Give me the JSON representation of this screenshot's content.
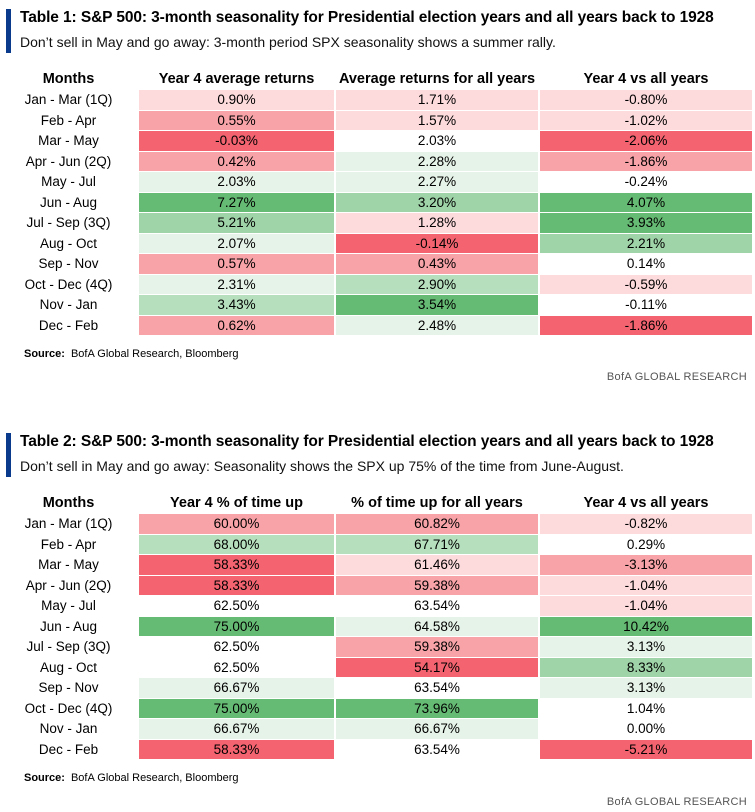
{
  "colors": {
    "accent_bar": "#0a3a8c",
    "scale": {
      "r3": "#f46470",
      "r2": "#f7a3a7",
      "r1": "#fddadc",
      "n": "#ffffff",
      "g1": "#e6f3e8",
      "g2": "#b6dfbd",
      "g3": "#9fd3a8",
      "g4": "#66bb74"
    }
  },
  "table1": {
    "title": "Table 1: S&P 500: 3-month seasonality for Presidential election years and all years back to 1928",
    "subtitle": "Don’t sell in May and go away: 3-month period SPX seasonality shows a summer rally.",
    "headers": [
      "Months",
      "Year 4 average returns",
      "Average returns for all years",
      "Year 4 vs all years"
    ],
    "rows": [
      {
        "month": "Jan - Mar (1Q)",
        "v1": "0.90%",
        "c1": "r1",
        "v2": "1.71%",
        "c2": "r1",
        "v3": "-0.80%",
        "c3": "r1"
      },
      {
        "month": "Feb - Apr",
        "v1": "0.55%",
        "c1": "r2",
        "v2": "1.57%",
        "c2": "r1",
        "v3": "-1.02%",
        "c3": "r1"
      },
      {
        "month": "Mar - May",
        "v1": "-0.03%",
        "c1": "r3",
        "v2": "2.03%",
        "c2": "n",
        "v3": "-2.06%",
        "c3": "r3"
      },
      {
        "month": "Apr - Jun (2Q)",
        "v1": "0.42%",
        "c1": "r2",
        "v2": "2.28%",
        "c2": "g1",
        "v3": "-1.86%",
        "c3": "r2"
      },
      {
        "month": "May - Jul",
        "v1": "2.03%",
        "c1": "g1",
        "v2": "2.27%",
        "c2": "g1",
        "v3": "-0.24%",
        "c3": "n"
      },
      {
        "month": "Jun - Aug",
        "v1": "7.27%",
        "c1": "g4",
        "v2": "3.20%",
        "c2": "g3",
        "v3": "4.07%",
        "c3": "g4"
      },
      {
        "month": "Jul - Sep (3Q)",
        "v1": "5.21%",
        "c1": "g3",
        "v2": "1.28%",
        "c2": "r1",
        "v3": "3.93%",
        "c3": "g4"
      },
      {
        "month": "Aug - Oct",
        "v1": "2.07%",
        "c1": "g1",
        "v2": "-0.14%",
        "c2": "r3",
        "v3": "2.21%",
        "c3": "g3"
      },
      {
        "month": "Sep - Nov",
        "v1": "0.57%",
        "c1": "r2",
        "v2": "0.43%",
        "c2": "r2",
        "v3": "0.14%",
        "c3": "n"
      },
      {
        "month": "Oct - Dec (4Q)",
        "v1": "2.31%",
        "c1": "g1",
        "v2": "2.90%",
        "c2": "g2",
        "v3": "-0.59%",
        "c3": "r1"
      },
      {
        "month": "Nov - Jan",
        "v1": "3.43%",
        "c1": "g2",
        "v2": "3.54%",
        "c2": "g4",
        "v3": "-0.11%",
        "c3": "n"
      },
      {
        "month": "Dec - Feb",
        "v1": "0.62%",
        "c1": "r2",
        "v2": "2.48%",
        "c2": "g1",
        "v3": "-1.86%",
        "c3": "r3"
      }
    ],
    "source_label": "Source:",
    "source_text": "BofA Global Research, Bloomberg",
    "brand": "BofA GLOBAL RESEARCH"
  },
  "table2": {
    "title": "Table 2: S&P 500: 3-month seasonality for Presidential election years and all years back to 1928",
    "subtitle": "Don’t sell in May and go away: Seasonality shows the SPX up 75% of the time from June-August.",
    "headers": [
      "Months",
      "Year 4 % of time up",
      "% of time up for all years",
      "Year 4 vs all years"
    ],
    "rows": [
      {
        "month": "Jan - Mar (1Q)",
        "v1": "60.00%",
        "c1": "r2",
        "v2": "60.82%",
        "c2": "r2",
        "v3": "-0.82%",
        "c3": "r1"
      },
      {
        "month": "Feb - Apr",
        "v1": "68.00%",
        "c1": "g2",
        "v2": "67.71%",
        "c2": "g2",
        "v3": "0.29%",
        "c3": "n"
      },
      {
        "month": "Mar - May",
        "v1": "58.33%",
        "c1": "r3",
        "v2": "61.46%",
        "c2": "r1",
        "v3": "-3.13%",
        "c3": "r2"
      },
      {
        "month": "Apr - Jun (2Q)",
        "v1": "58.33%",
        "c1": "r3",
        "v2": "59.38%",
        "c2": "r2",
        "v3": "-1.04%",
        "c3": "r1"
      },
      {
        "month": "May - Jul",
        "v1": "62.50%",
        "c1": "n",
        "v2": "63.54%",
        "c2": "n",
        "v3": "-1.04%",
        "c3": "r1"
      },
      {
        "month": "Jun - Aug",
        "v1": "75.00%",
        "c1": "g4",
        "v2": "64.58%",
        "c2": "g1",
        "v3": "10.42%",
        "c3": "g4"
      },
      {
        "month": "Jul - Sep (3Q)",
        "v1": "62.50%",
        "c1": "n",
        "v2": "59.38%",
        "c2": "r2",
        "v3": "3.13%",
        "c3": "g1"
      },
      {
        "month": "Aug - Oct",
        "v1": "62.50%",
        "c1": "n",
        "v2": "54.17%",
        "c2": "r3",
        "v3": "8.33%",
        "c3": "g3"
      },
      {
        "month": "Sep - Nov",
        "v1": "66.67%",
        "c1": "g1",
        "v2": "63.54%",
        "c2": "n",
        "v3": "3.13%",
        "c3": "g1"
      },
      {
        "month": "Oct - Dec (4Q)",
        "v1": "75.00%",
        "c1": "g4",
        "v2": "73.96%",
        "c2": "g4",
        "v3": "1.04%",
        "c3": "n"
      },
      {
        "month": "Nov - Jan",
        "v1": "66.67%",
        "c1": "g1",
        "v2": "66.67%",
        "c2": "g1",
        "v3": "0.00%",
        "c3": "n"
      },
      {
        "month": "Dec - Feb",
        "v1": "58.33%",
        "c1": "r3",
        "v2": "63.54%",
        "c2": "n",
        "v3": "-5.21%",
        "c3": "r3"
      }
    ],
    "source_label": "Source:",
    "source_text": "BofA Global Research, Bloomberg",
    "brand": "BofA GLOBAL RESEARCH"
  }
}
